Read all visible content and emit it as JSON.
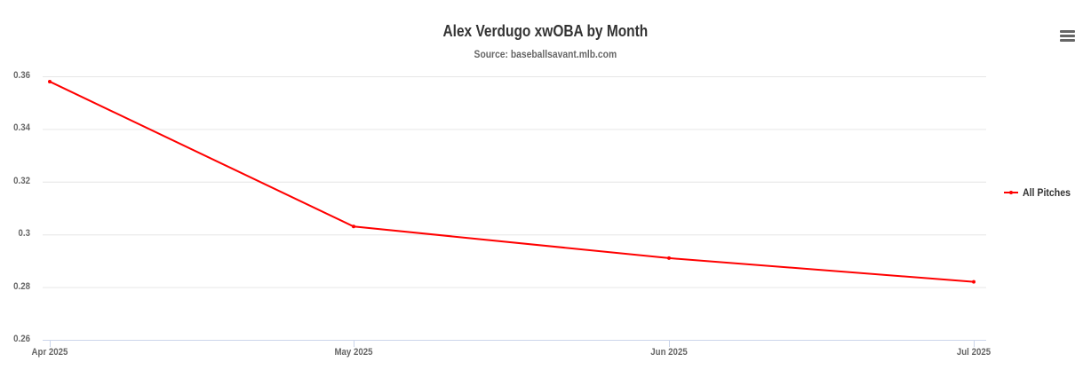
{
  "chart": {
    "title": "Alex Verdugo xwOBA by Month",
    "subtitle": "Source: baseballsavant.mlb.com",
    "menu_icon": "hamburger-menu-icon",
    "legend_label": "All Pitches",
    "series_color": "#ff0000",
    "y_ticks": [
      "0.36",
      "0.34",
      "0.32",
      "0.3",
      "0.28",
      "0.26"
    ],
    "x_ticks": [
      "Apr 2025",
      "May 2025",
      "Jun 2025",
      "Jul 2025"
    ]
  },
  "chart_data": {
    "type": "line",
    "title": "Alex Verdugo xwOBA by Month",
    "subtitle": "Source: baseballsavant.mlb.com",
    "categories": [
      "Apr 2025",
      "May 2025",
      "Jun 2025",
      "Jul 2025"
    ],
    "series": [
      {
        "name": "All Pitches",
        "color": "#ff0000",
        "values": [
          0.358,
          0.303,
          0.291,
          0.282
        ]
      }
    ],
    "xlabel": "",
    "ylabel": "",
    "ylim": [
      0.26,
      0.36
    ],
    "yticks": [
      0.26,
      0.28,
      0.3,
      0.32,
      0.34,
      0.36
    ],
    "grid": true,
    "legend_position": "right"
  }
}
